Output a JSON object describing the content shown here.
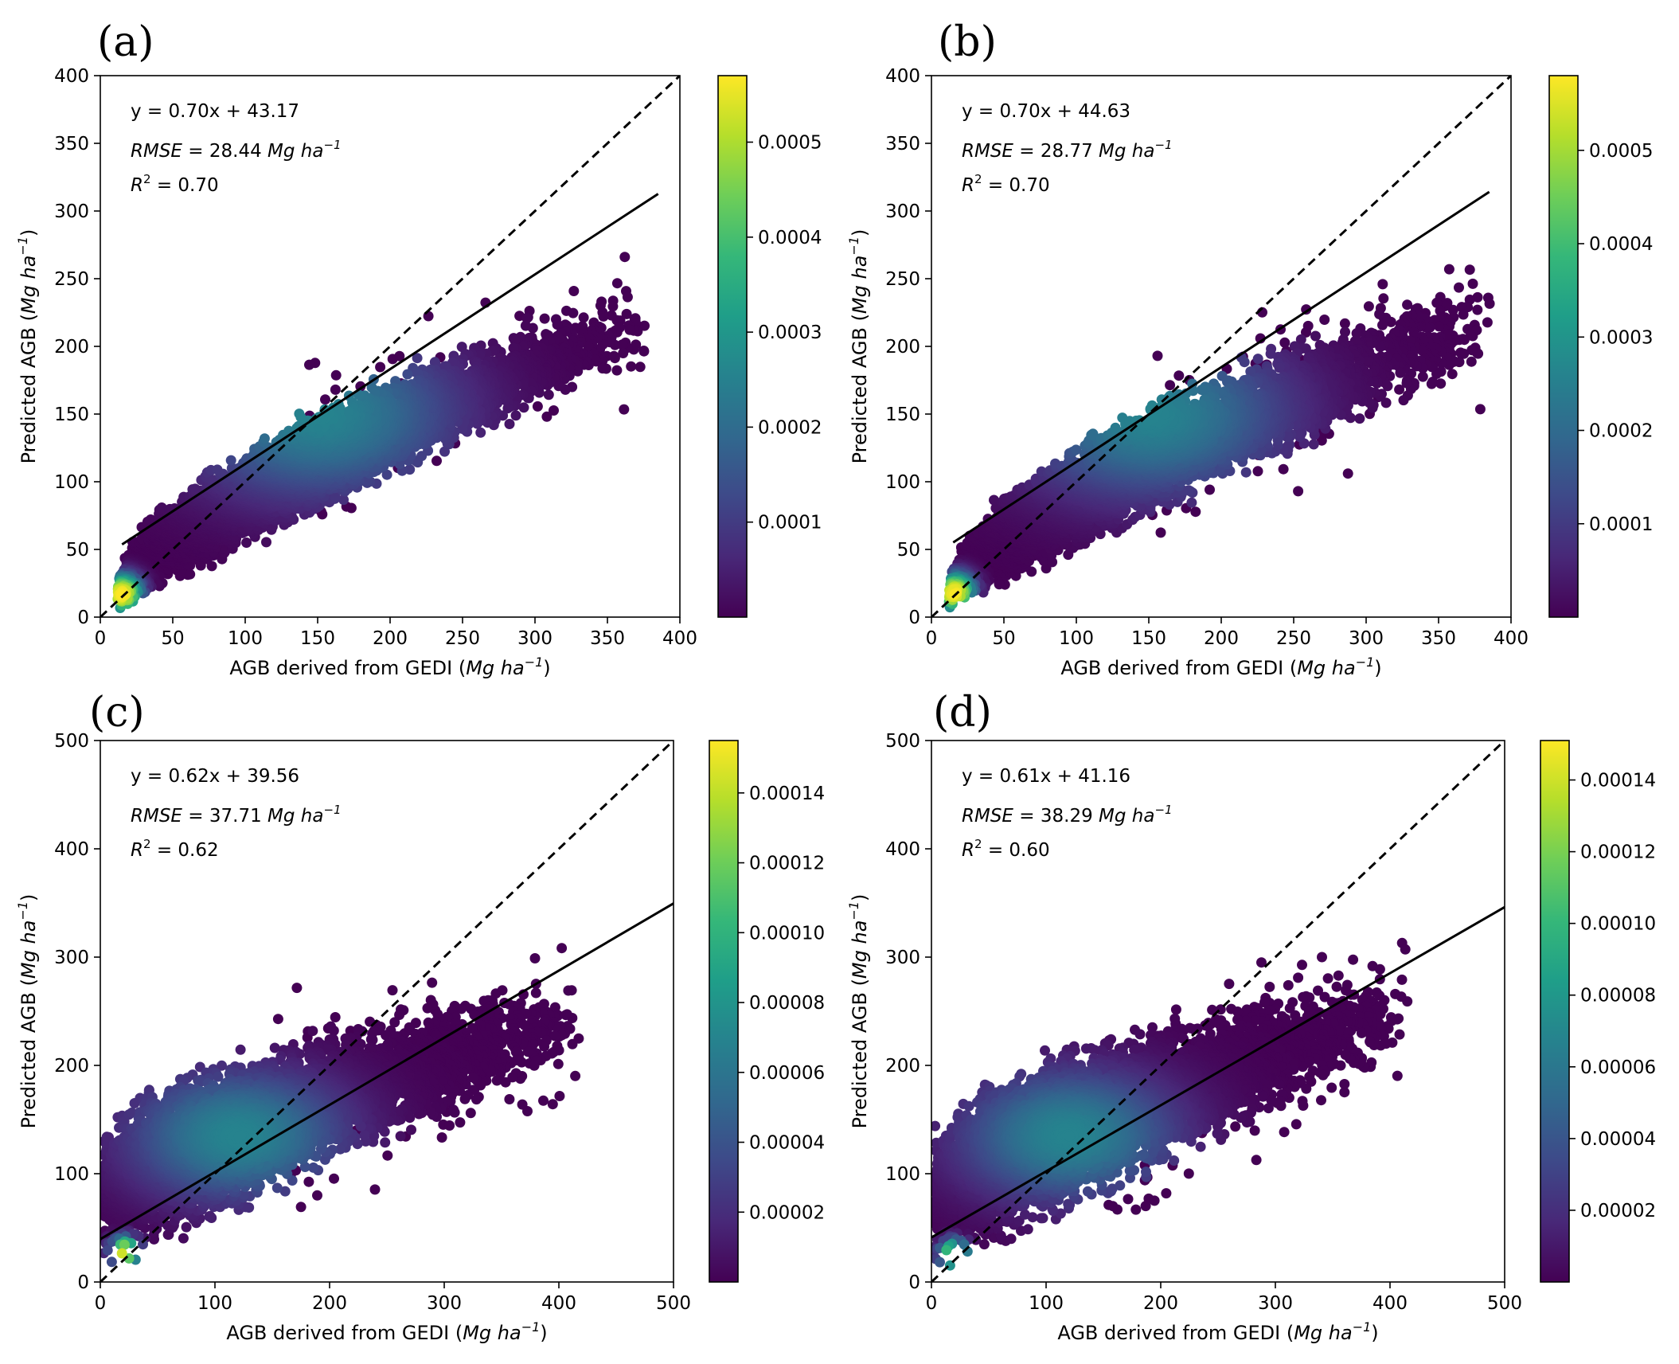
{
  "colormap": [
    "#440154",
    "#482878",
    "#3e4989",
    "#31688e",
    "#26828e",
    "#1f9e89",
    "#35b779",
    "#6ece58",
    "#b5de2b",
    "#fde725"
  ],
  "line_color": "#000000",
  "chart_data": [
    {
      "type": "scatter",
      "panel": "(a)",
      "xlabel_main": "AGB derived from GEDI (",
      "xlabel_unit": "Mg ha",
      "ylabel_main": "Predicted AGB (",
      "ylabel_unit": "Mg ha",
      "unit_exp": "−1",
      "xlim": [
        0,
        400
      ],
      "ylim": [
        0,
        400
      ],
      "xticks": [
        0,
        50,
        100,
        150,
        200,
        250,
        300,
        350,
        400
      ],
      "yticks": [
        0,
        50,
        100,
        150,
        200,
        250,
        300,
        350,
        400
      ],
      "fit": {
        "slope": 0.7,
        "intercept": 43.17,
        "x_range": [
          15,
          385
        ]
      },
      "one_to_one_range": [
        0,
        400
      ],
      "equation": "y = 0.70x + 43.17",
      "rmse_label": "RMSE",
      "rmse_value": "= 28.44",
      "r2_label": "R",
      "r2_exp": "2",
      "r2_value": "= 0.70",
      "colorbar_max": 0.00057,
      "colorbar_ticks": [
        0.0001,
        0.0002,
        0.0003,
        0.0004,
        0.0005
      ],
      "colorbar_tick_labels": [
        "0.0001",
        "0.0002",
        "0.0003",
        "0.0004",
        "0.0005"
      ],
      "density": {
        "dense_x": [
          12,
          380
        ],
        "upper_y": [
          28,
          255
        ],
        "lower_y": [
          2,
          185
        ],
        "core": [
          150,
          150
        ],
        "hotspot": [
          15,
          17
        ]
      }
    },
    {
      "type": "scatter",
      "panel": "(b)",
      "xlabel_main": "AGB derived from GEDI (",
      "xlabel_unit": "Mg ha",
      "ylabel_main": "Predicted AGB (",
      "ylabel_unit": "Mg ha",
      "unit_exp": "−1",
      "xlim": [
        0,
        400
      ],
      "ylim": [
        0,
        400
      ],
      "xticks": [
        0,
        50,
        100,
        150,
        200,
        250,
        300,
        350,
        400
      ],
      "yticks": [
        0,
        50,
        100,
        150,
        200,
        250,
        300,
        350,
        400
      ],
      "fit": {
        "slope": 0.7,
        "intercept": 44.63,
        "x_range": [
          15,
          385
        ]
      },
      "one_to_one_range": [
        0,
        400
      ],
      "equation": "y = 0.70x + 44.63",
      "rmse_label": "RMSE",
      "rmse_value": "= 28.77",
      "r2_label": "R",
      "r2_exp": "2",
      "r2_value": "= 0.70",
      "colorbar_max": 0.00058,
      "colorbar_ticks": [
        0.0001,
        0.0002,
        0.0003,
        0.0004,
        0.0005
      ],
      "colorbar_tick_labels": [
        "0.0001",
        "0.0002",
        "0.0003",
        "0.0004",
        "0.0005"
      ],
      "density": {
        "dense_x": [
          12,
          390
        ],
        "upper_y": [
          28,
          265
        ],
        "lower_y": [
          2,
          180
        ],
        "core": [
          150,
          150
        ],
        "hotspot": [
          16,
          18
        ]
      }
    },
    {
      "type": "scatter",
      "panel": "(c)",
      "xlabel_main": "AGB derived from GEDI (",
      "xlabel_unit": "Mg ha",
      "ylabel_main": "Predicted AGB (",
      "ylabel_unit": "Mg ha",
      "unit_exp": "−1",
      "xlim": [
        0,
        500
      ],
      "ylim": [
        0,
        500
      ],
      "xticks": [
        0,
        100,
        200,
        300,
        400,
        500
      ],
      "yticks": [
        0,
        100,
        200,
        300,
        400,
        500
      ],
      "fit": {
        "slope": 0.62,
        "intercept": 39.56,
        "x_range": [
          0,
          500
        ]
      },
      "one_to_one_range": [
        0,
        500
      ],
      "equation": "y = 0.62x + 39.56",
      "rmse_label": "RMSE",
      "rmse_value": "= 37.71",
      "r2_label": "R",
      "r2_exp": "2",
      "r2_value": "= 0.62",
      "colorbar_max": 0.000155,
      "colorbar_ticks": [
        2e-05,
        4e-05,
        6e-05,
        8e-05,
        0.0001,
        0.00012,
        0.00014
      ],
      "colorbar_tick_labels": [
        "0.00002",
        "0.00004",
        "0.00006",
        "0.00008",
        "0.00010",
        "0.00012",
        "0.00014"
      ],
      "density": {
        "dense_x": [
          2,
          420
        ],
        "upper_y": [
          150,
          290
        ],
        "lower_y": [
          0,
          200
        ],
        "core": [
          120,
          135
        ],
        "hotspot": [
          22,
          28
        ]
      }
    },
    {
      "type": "scatter",
      "panel": "(d)",
      "xlabel_main": "AGB derived from GEDI (",
      "xlabel_unit": "Mg ha",
      "ylabel_main": "Predicted AGB (",
      "ylabel_unit": "Mg ha",
      "unit_exp": "−1",
      "xlim": [
        0,
        500
      ],
      "ylim": [
        0,
        500
      ],
      "xticks": [
        0,
        100,
        200,
        300,
        400,
        500
      ],
      "yticks": [
        0,
        100,
        200,
        300,
        400,
        500
      ],
      "fit": {
        "slope": 0.61,
        "intercept": 41.16,
        "x_range": [
          0,
          500
        ]
      },
      "one_to_one_range": [
        0,
        500
      ],
      "equation": "y = 0.61x + 41.16",
      "rmse_label": "RMSE",
      "rmse_value": "= 38.29",
      "r2_label": "R",
      "r2_exp": "2",
      "r2_value": "= 0.60",
      "colorbar_max": 0.000151,
      "colorbar_ticks": [
        2e-05,
        4e-05,
        6e-05,
        8e-05,
        0.0001,
        0.00012,
        0.00014
      ],
      "colorbar_tick_labels": [
        "0.00002",
        "0.00004",
        "0.00006",
        "0.00008",
        "0.00010",
        "0.00012",
        "0.00014"
      ],
      "density": {
        "dense_x": [
          2,
          420
        ],
        "upper_y": [
          150,
          300
        ],
        "lower_y": [
          0,
          200
        ],
        "core": [
          120,
          135
        ],
        "hotspot": [
          20,
          25
        ]
      }
    }
  ]
}
